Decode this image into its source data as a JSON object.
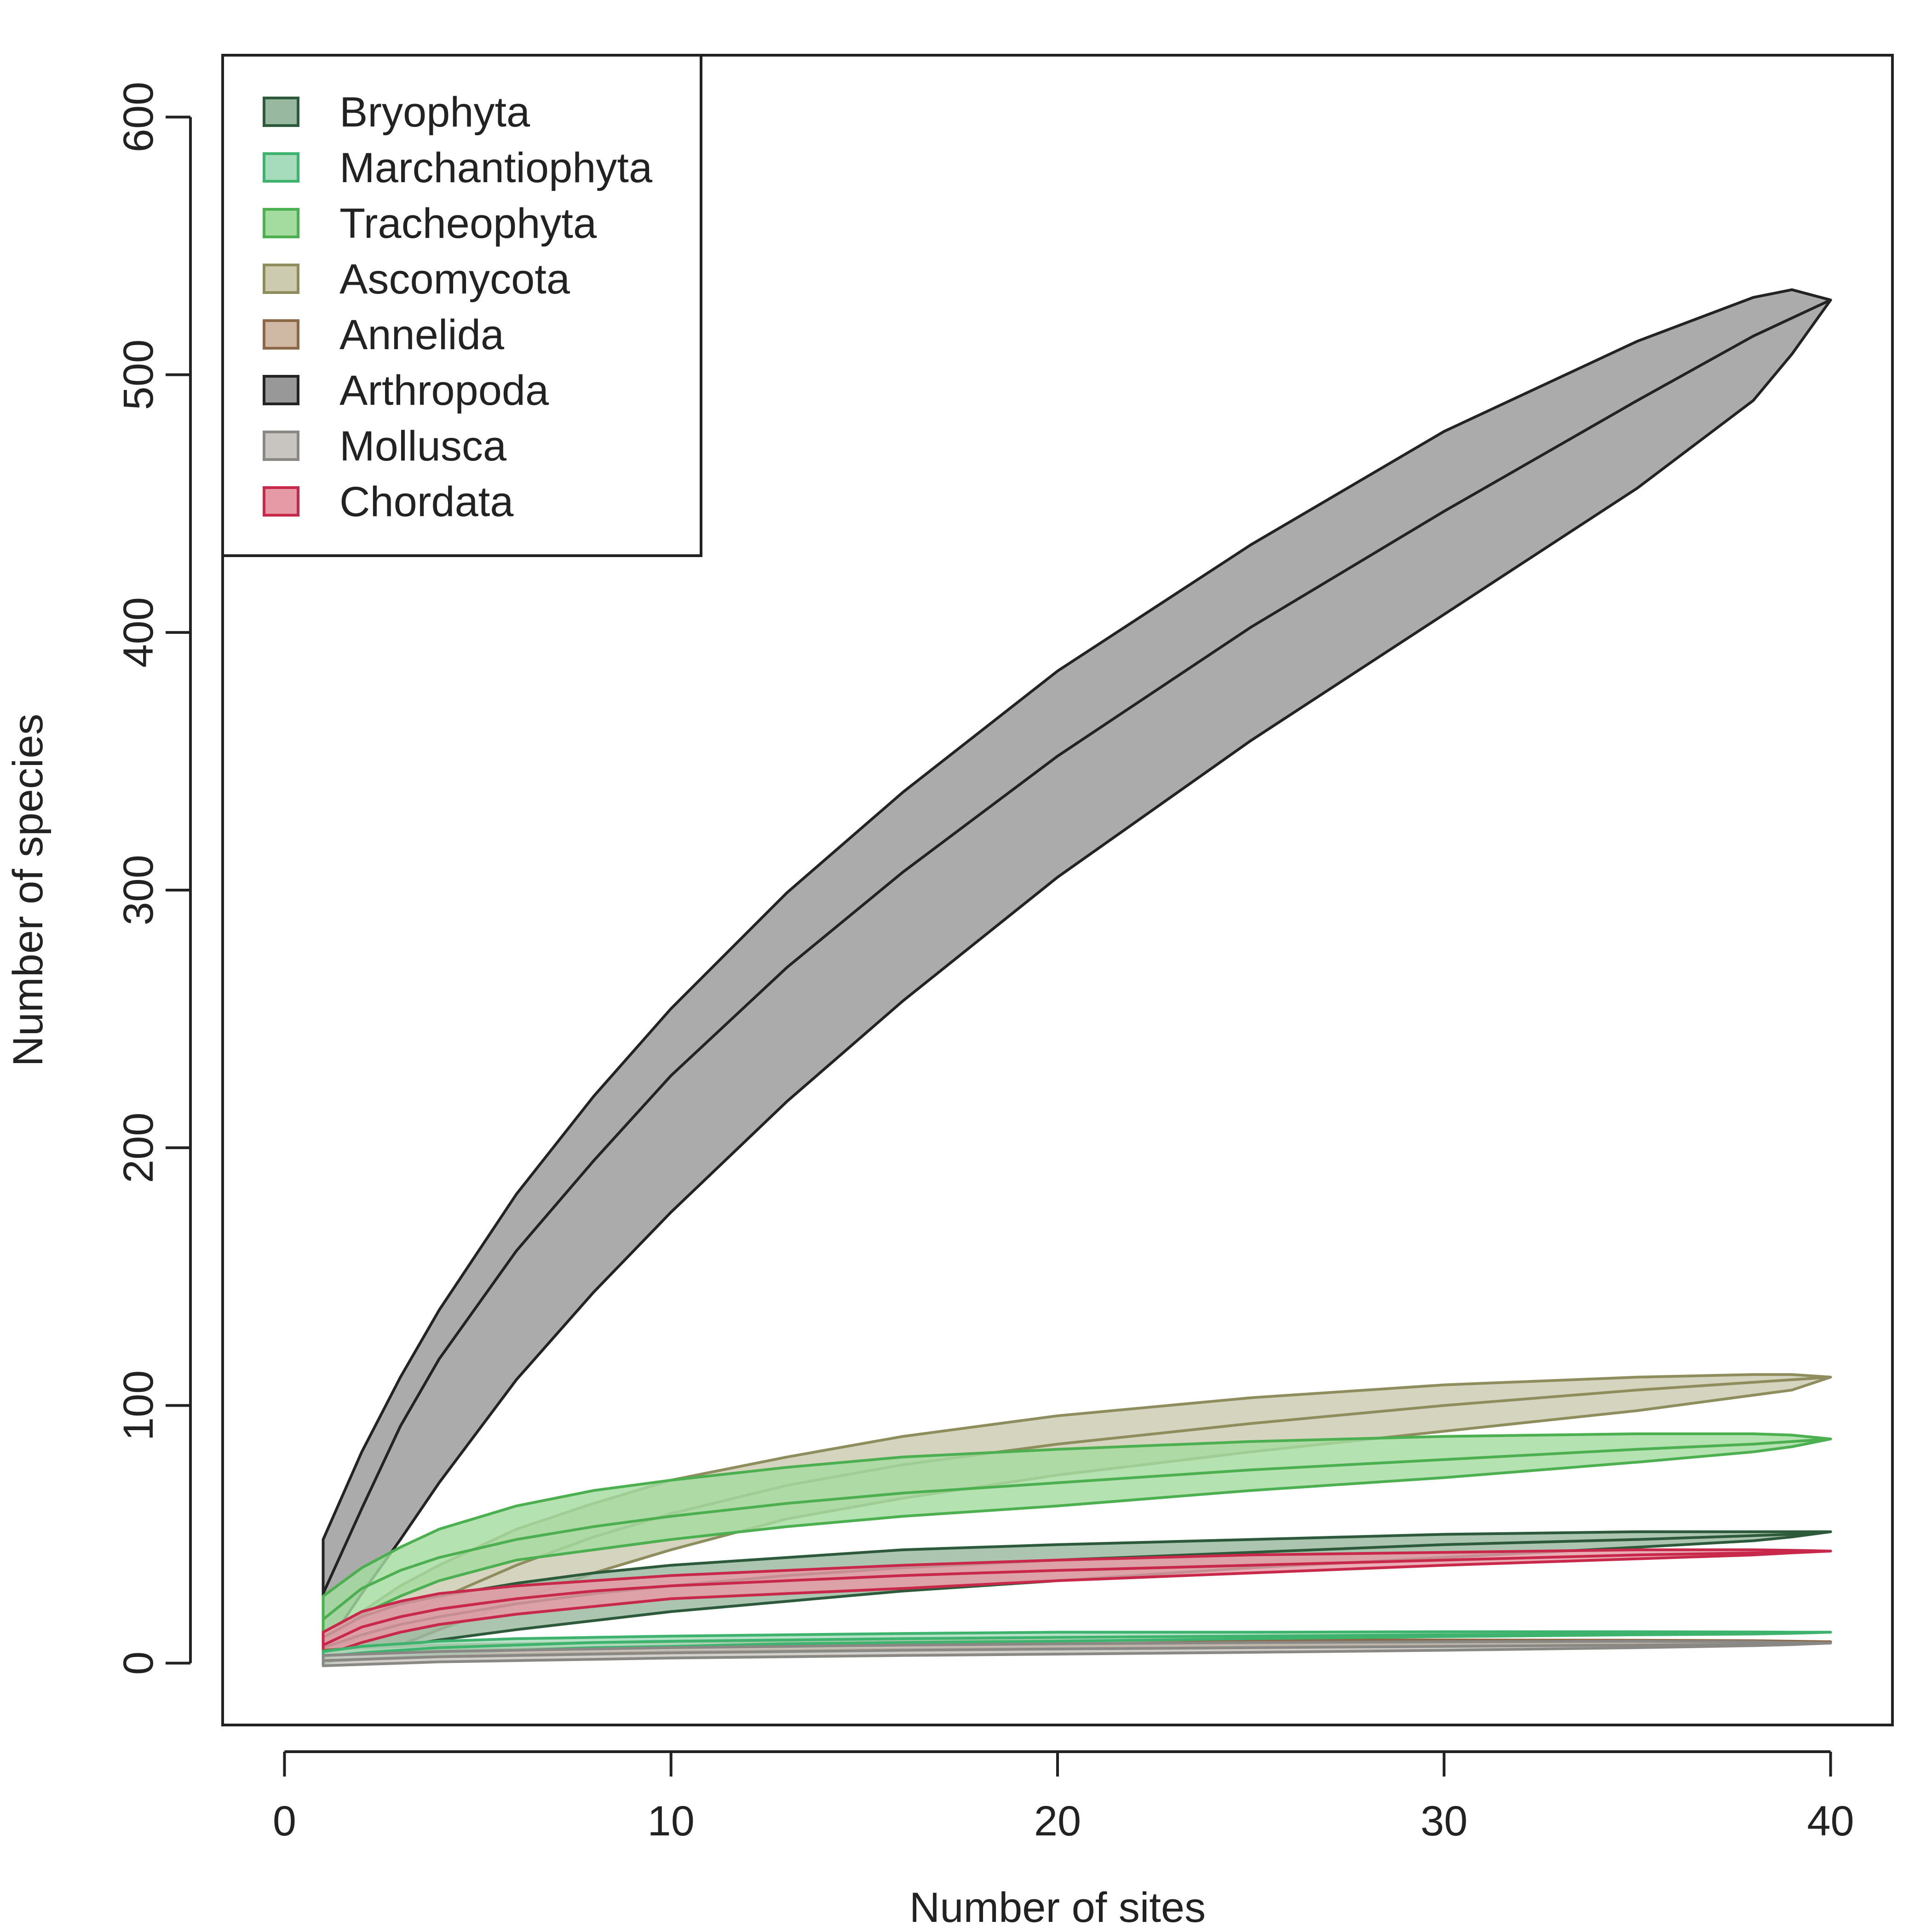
{
  "chart_data": {
    "type": "area",
    "title": "",
    "xlabel": "Number of sites",
    "ylabel": "Number of species",
    "xlim": [
      -1.6,
      41.6
    ],
    "ylim": [
      -24,
      624
    ],
    "x_ticks": [
      0,
      10,
      20,
      30,
      40
    ],
    "y_ticks": [
      0,
      100,
      200,
      300,
      400,
      500,
      600
    ],
    "x_tick_labels": [
      "0",
      "10",
      "20",
      "30",
      "40"
    ],
    "y_tick_labels": [
      "0",
      "100",
      "200",
      "300",
      "400",
      "500",
      "600"
    ],
    "grid": false,
    "legend_position": "top-left",
    "x": [
      1,
      2,
      3,
      4,
      6,
      8,
      10,
      13,
      16,
      20,
      25,
      30,
      35,
      38,
      39,
      40
    ],
    "series": [
      {
        "name": "Bryophyta",
        "fill": "#98b8a0",
        "stroke": "#2d5a3a",
        "mean_stroke": "#2d5a3a",
        "mean": [
          6,
          11,
          15,
          18,
          23,
          27,
          30,
          34,
          37,
          40,
          43,
          46,
          48,
          49.5,
          50,
          51
        ],
        "lower": [
          2,
          4,
          6.5,
          9,
          13,
          16.5,
          20,
          24,
          28,
          32,
          37,
          41,
          45,
          47.5,
          49,
          51
        ],
        "upper": [
          10,
          18,
          23,
          26,
          31,
          35,
          38,
          41,
          44,
          46,
          48,
          50,
          51,
          51,
          51,
          51
        ]
      },
      {
        "name": "Marchantiophyta",
        "fill": "#a6dcbc",
        "stroke": "#3db36e",
        "mean_stroke": "#3db36e",
        "mean": [
          2.5,
          4,
          5,
          6,
          7,
          8,
          8.5,
          9,
          9.5,
          10,
          10.5,
          11,
          11.3,
          11.5,
          11.7,
          12
        ],
        "lower": [
          0.5,
          1.5,
          2.5,
          3.5,
          5,
          6,
          6.5,
          7.5,
          8,
          8.5,
          9.5,
          10.3,
          11,
          11.3,
          11.6,
          12
        ],
        "upper": [
          4.5,
          6.5,
          7.5,
          8.5,
          9.5,
          10,
          10.5,
          11,
          11.5,
          12,
          12,
          12.2,
          12.2,
          12.1,
          12,
          12
        ]
      },
      {
        "name": "Tracheophyta",
        "fill": "#a4dca0",
        "stroke": "#4caf50",
        "mean_stroke": "#4caf50",
        "mean": [
          17,
          29,
          36,
          41,
          48,
          53,
          57,
          62,
          66,
          70,
          75,
          79,
          83,
          85,
          86,
          87
        ],
        "lower": [
          8,
          19,
          26,
          32,
          40,
          44,
          48,
          53,
          57,
          61,
          67,
          72,
          78,
          82,
          84,
          87
        ],
        "upper": [
          26,
          37,
          45,
          52,
          61,
          67,
          71,
          76,
          80,
          83,
          86,
          88,
          89,
          89,
          88.5,
          87
        ]
      },
      {
        "name": "Ascomycota",
        "fill": "#cccbb0",
        "stroke": "#8e8d5e",
        "mean_stroke": "#8e8d5e",
        "mean": [
          4,
          10,
          17,
          25,
          38,
          49,
          58,
          69,
          77,
          85,
          93,
          100,
          106,
          109,
          110,
          111
        ],
        "lower": [
          0,
          3,
          7,
          13,
          24,
          35,
          44,
          56,
          64,
          73,
          82,
          90,
          98,
          104,
          106,
          111
        ],
        "upper": [
          9,
          20,
          30,
          38,
          52,
          62,
          71,
          80,
          88,
          96,
          103,
          108,
          111,
          112,
          112,
          111
        ]
      },
      {
        "name": "Annelida",
        "fill": "#cfb8a4",
        "stroke": "#8a6848",
        "mean_stroke": "#8a6848",
        "mean": [
          3,
          4,
          4.5,
          5,
          5.5,
          6,
          6.3,
          6.6,
          6.9,
          7.2,
          7.5,
          7.8,
          8,
          8.1,
          8.2,
          8.3
        ],
        "lower": [
          1,
          2,
          2.5,
          3,
          3.5,
          4,
          4.5,
          5,
          5.5,
          6,
          6.5,
          7,
          7.6,
          7.9,
          8.1,
          8.3
        ],
        "upper": [
          5,
          6,
          6.5,
          7,
          7.5,
          8,
          8.2,
          8.4,
          8.6,
          8.8,
          9,
          9,
          8.9,
          8.7,
          8.5,
          8.3
        ]
      },
      {
        "name": "Arthropoda",
        "fill": "#989898",
        "stroke": "#232323",
        "mean_stroke": "#232323",
        "mean": [
          27,
          60,
          92,
          118,
          160,
          195,
          228,
          270,
          307,
          352,
          402,
          447,
          490,
          515,
          522,
          529
        ],
        "lower": [
          5,
          27,
          48,
          70,
          110,
          144,
          175,
          218,
          257,
          305,
          358,
          407,
          456,
          490,
          508,
          529
        ],
        "upper": [
          48,
          82,
          111,
          137,
          182,
          220,
          254,
          299,
          338,
          385,
          434,
          478,
          513,
          530,
          533,
          529
        ]
      },
      {
        "name": "Mollusca",
        "fill": "#c8c4c0",
        "stroke": "#8a8884",
        "mean_stroke": "#8a8884",
        "mean": [
          1,
          1.5,
          2,
          2.5,
          3,
          3.5,
          4,
          4.5,
          5,
          5.5,
          6,
          6.5,
          7,
          7.3,
          7.5,
          7.8
        ],
        "lower": [
          -1,
          -0.5,
          0,
          0.5,
          1,
          1.5,
          2,
          2.5,
          3,
          3.5,
          4.2,
          5,
          6,
          6.8,
          7.2,
          7.8
        ],
        "upper": [
          3,
          3.5,
          4,
          4.5,
          5,
          5.5,
          6,
          6.5,
          7,
          7.5,
          8,
          8.3,
          8.5,
          8.3,
          8,
          7.8
        ]
      },
      {
        "name": "Chordata",
        "fill": "#e69aa6",
        "stroke": "#c8284a",
        "mean_stroke": "#c8284a",
        "mean": [
          7,
          14,
          18,
          21,
          25,
          28,
          30,
          32,
          34,
          36,
          38,
          40,
          42,
          42.8,
          43,
          43.5
        ],
        "lower": [
          3,
          8,
          12,
          15,
          19,
          22,
          25,
          27,
          29,
          32,
          35,
          38,
          40.5,
          42,
          42.8,
          43.5
        ],
        "upper": [
          12,
          20,
          24,
          27,
          30,
          32,
          34,
          36,
          38,
          40,
          42,
          43,
          44,
          44,
          43.8,
          43.5
        ]
      }
    ],
    "draw_order": [
      "Arthropoda",
      "Ascomycota",
      "Tracheophyta",
      "Bryophyta",
      "Chordata",
      "Annelida",
      "Marchantiophyta",
      "Mollusca"
    ]
  }
}
